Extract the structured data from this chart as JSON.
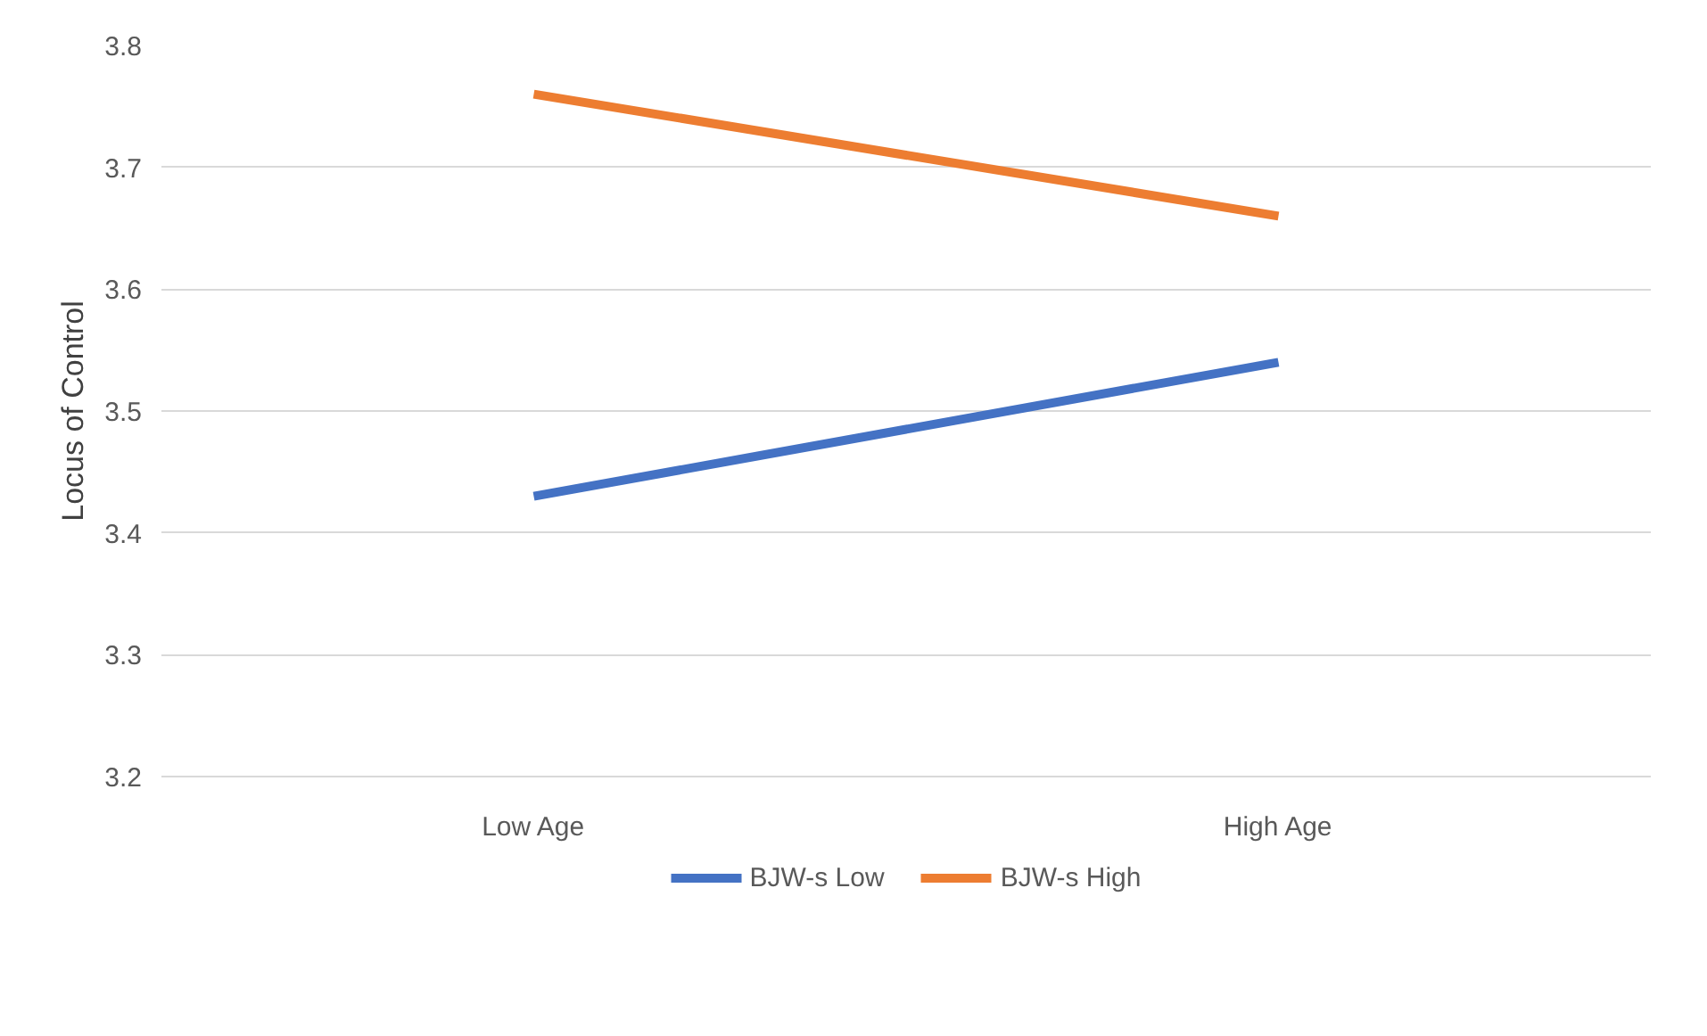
{
  "chart_data": {
    "type": "line",
    "ylabel": "Locus of Control",
    "categories": [
      "Low Age",
      "High Age"
    ],
    "series": [
      {
        "name": "BJW-s Low",
        "color": "#4472c4",
        "values": [
          3.43,
          3.54
        ]
      },
      {
        "name": "BJW-s High",
        "color": "#ed7d31",
        "values": [
          3.76,
          3.66
        ]
      }
    ],
    "ylim": [
      3.2,
      3.8
    ],
    "yticks": [
      3.2,
      3.3,
      3.4,
      3.5,
      3.6,
      3.7,
      3.8
    ],
    "grid": "y",
    "legend": "bottom",
    "marker": "none",
    "line_style": "solid"
  }
}
